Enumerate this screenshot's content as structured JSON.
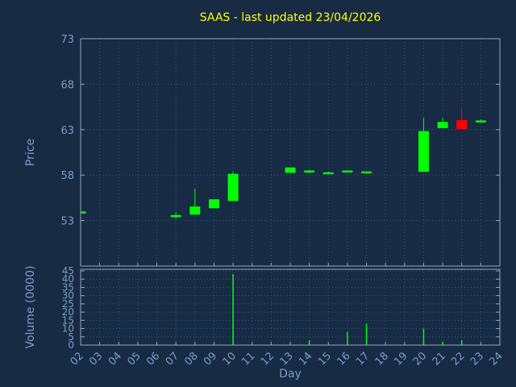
{
  "chart_data": [
    {
      "type": "candlestick",
      "panel": "price",
      "title": "SAAS - last updated 23/04/2026",
      "title_color": "#ffff00",
      "xlabel": "Day",
      "ylabel": "Price",
      "ylim": [
        48,
        73
      ],
      "yticks": [
        53,
        58,
        63,
        68,
        73
      ],
      "xlim": [
        2,
        24
      ],
      "xtick_labels": [
        "02",
        "03",
        "04",
        "05",
        "06",
        "07",
        "08",
        "09",
        "10",
        "11",
        "12",
        "13",
        "14",
        "15",
        "16",
        "17",
        "18",
        "19",
        "20",
        "21",
        "22",
        "23",
        "24"
      ],
      "grid": true,
      "legend": "none",
      "colors": {
        "up": "#00ff00",
        "down": "#ff0000"
      },
      "candles": [
        {
          "day": 2,
          "open": 53.9,
          "high": 53.9,
          "low": 53.9,
          "close": 53.9
        },
        {
          "day": 7,
          "open": 53.5,
          "high": 53.9,
          "low": 53.2,
          "close": 53.5
        },
        {
          "day": 8,
          "open": 53.7,
          "high": 56.5,
          "low": 53.7,
          "close": 54.5
        },
        {
          "day": 9,
          "open": 54.4,
          "high": 55.3,
          "low": 54.4,
          "close": 55.3
        },
        {
          "day": 10,
          "open": 55.2,
          "high": 58.4,
          "low": 55.2,
          "close": 58.1
        },
        {
          "day": 13,
          "open": 58.3,
          "high": 58.8,
          "low": 58.3,
          "close": 58.8
        },
        {
          "day": 14,
          "open": 58.4,
          "high": 58.6,
          "low": 58.2,
          "close": 58.4
        },
        {
          "day": 15,
          "open": 58.2,
          "high": 58.4,
          "low": 58.1,
          "close": 58.2
        },
        {
          "day": 16,
          "open": 58.4,
          "high": 58.5,
          "low": 58.3,
          "close": 58.4
        },
        {
          "day": 17,
          "open": 58.3,
          "high": 58.4,
          "low": 58.2,
          "close": 58.3
        },
        {
          "day": 20,
          "open": 58.4,
          "high": 64.3,
          "low": 58.4,
          "close": 62.8
        },
        {
          "day": 21,
          "open": 63.2,
          "high": 64.3,
          "low": 63.2,
          "close": 63.8
        },
        {
          "day": 22,
          "open": 64.0,
          "high": 65.4,
          "low": 63.0,
          "close": 63.1
        },
        {
          "day": 23,
          "open": 63.9,
          "high": 64.1,
          "low": 63.8,
          "close": 63.9
        }
      ]
    },
    {
      "type": "bar",
      "panel": "volume",
      "ylabel": "Volume (0000)",
      "ylim": [
        0,
        45
      ],
      "yticks": [
        0,
        5,
        10,
        15,
        20,
        25,
        30,
        35,
        40,
        45
      ],
      "color": "#00ff00",
      "bars": [
        {
          "day": 10,
          "value": 43
        },
        {
          "day": 14,
          "value": 3
        },
        {
          "day": 16,
          "value": 8
        },
        {
          "day": 17,
          "value": 13
        },
        {
          "day": 20,
          "value": 10
        },
        {
          "day": 21,
          "value": 2
        },
        {
          "day": 22,
          "value": 3
        }
      ]
    }
  ],
  "theme": {
    "background": "#172b44",
    "grid_color": "#34567e",
    "border_color": "#93a7bd",
    "tick_label_color": "#7e9cc6"
  }
}
